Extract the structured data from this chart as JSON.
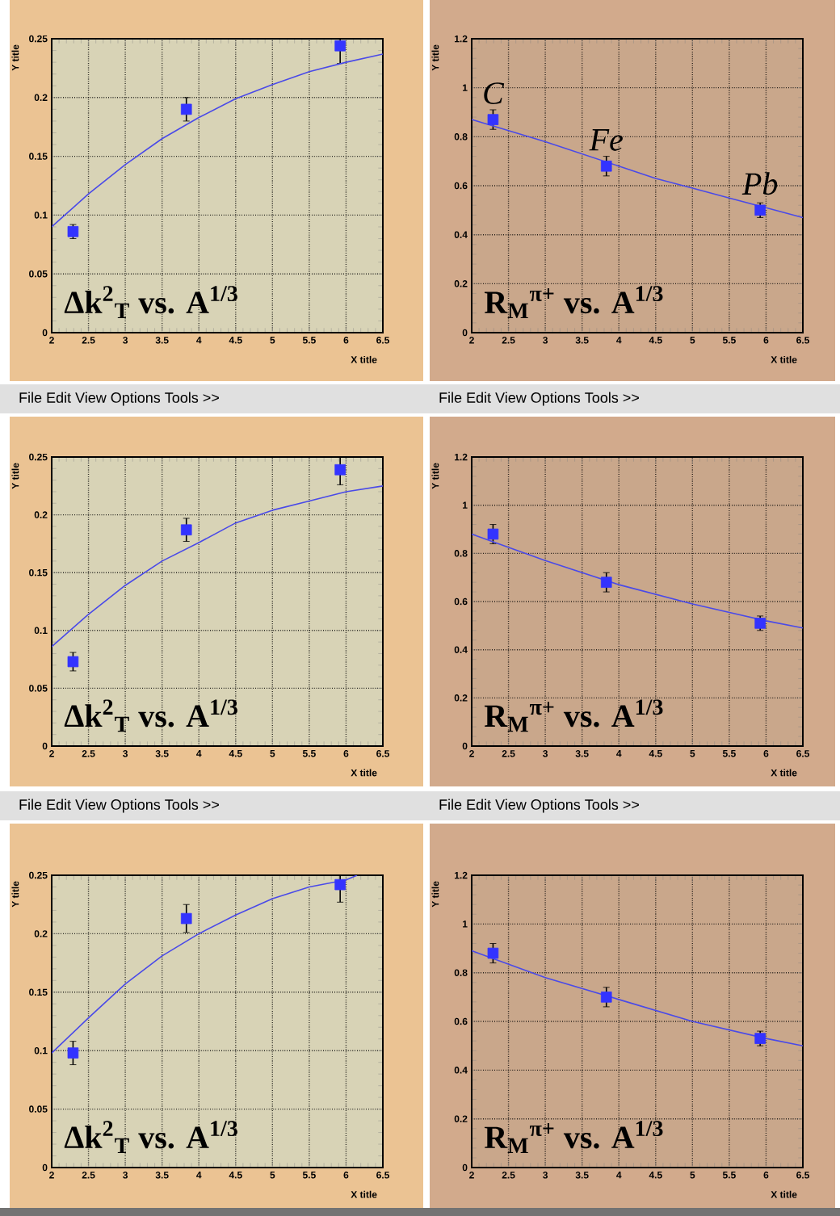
{
  "chart_data": [
    {
      "type": "scatter",
      "xlabel": "X title",
      "ylabel": "Y title",
      "xlim": [
        2,
        6.5
      ],
      "ylim": [
        0,
        0.25
      ],
      "xticks": [
        2,
        2.5,
        3,
        3.5,
        4,
        4.5,
        5,
        5.5,
        6,
        6.5
      ],
      "yticks": [
        0,
        0.05,
        0.1,
        0.15,
        0.2,
        0.25
      ],
      "grid": true,
      "series": [
        {
          "marker": "square",
          "color": "#3333ff",
          "x": [
            2.29,
            3.83,
            5.92
          ],
          "values": [
            0.086,
            0.19,
            0.244
          ],
          "errors": [
            0.006,
            0.01,
            0.015
          ]
        },
        {
          "type": "line",
          "color": "#4a4ae8",
          "x": [
            2,
            2.5,
            3,
            3.5,
            4,
            4.5,
            5,
            5.5,
            6,
            6.5
          ],
          "values": [
            0.09,
            0.118,
            0.143,
            0.165,
            0.183,
            0.199,
            0.211,
            0.222,
            0.23,
            0.237
          ]
        }
      ],
      "annotations": [
        "Δk$^{2}$$_{T}$ vs. A$^{1/3}$"
      ]
    },
    {
      "type": "scatter",
      "xlabel": "X title",
      "ylabel": "Y title",
      "xlim": [
        2,
        6.5
      ],
      "ylim": [
        0,
        1.2
      ],
      "xticks": [
        2,
        2.5,
        3,
        3.5,
        4,
        4.5,
        5,
        5.5,
        6,
        6.5
      ],
      "yticks": [
        0,
        0.2,
        0.4,
        0.6,
        0.8,
        1,
        1.2
      ],
      "grid": true,
      "series": [
        {
          "marker": "square",
          "color": "#3333ff",
          "x": [
            2.29,
            3.83,
            5.92
          ],
          "values": [
            0.87,
            0.68,
            0.5
          ],
          "errors": [
            0.04,
            0.04,
            0.03
          ]
        },
        {
          "type": "line",
          "color": "#4a4ae8",
          "x": [
            2,
            3,
            4,
            4.5,
            5,
            5.5,
            6,
            6.5
          ],
          "values": [
            0.87,
            0.78,
            0.68,
            0.63,
            0.59,
            0.55,
            0.51,
            0.47
          ]
        }
      ],
      "annotations": [
        "R$_{M}$$^{π+}$ vs. A$^{1/3}$",
        {
          "text": "C",
          "x": 2.29,
          "y": 0.87
        },
        {
          "text": "Fe",
          "x": 3.83,
          "y": 0.68
        },
        {
          "text": "Pb",
          "x": 5.92,
          "y": 0.5
        }
      ]
    },
    {
      "type": "scatter",
      "subtitle": "File   Edit   View   Options   Tools      >>",
      "xlabel": "X title",
      "ylabel": "Y title",
      "xlim": [
        2,
        6.5
      ],
      "ylim": [
        0,
        0.25
      ],
      "xticks": [
        2,
        2.5,
        3,
        3.5,
        4,
        4.5,
        5,
        5.5,
        6,
        6.5
      ],
      "yticks": [
        0,
        0.05,
        0.1,
        0.15,
        0.2,
        0.25
      ],
      "grid": true,
      "series": [
        {
          "marker": "square",
          "color": "#3333ff",
          "x": [
            2.29,
            3.83,
            5.92
          ],
          "values": [
            0.073,
            0.187,
            0.239
          ],
          "errors": [
            0.008,
            0.01,
            0.013
          ]
        },
        {
          "type": "line",
          "color": "#4a4ae8",
          "x": [
            2,
            2.5,
            3,
            3.5,
            4,
            4.5,
            5,
            5.5,
            6,
            6.5
          ],
          "values": [
            0.086,
            0.114,
            0.139,
            0.16,
            0.176,
            0.193,
            0.204,
            0.212,
            0.22,
            0.225
          ]
        }
      ],
      "annotations": [
        "Δk$^{2}$$_{T}$ vs. A$^{1/3}$"
      ]
    },
    {
      "type": "scatter",
      "subtitle": "File   Edit   View   Options   Tools      >>",
      "xlabel": "X title",
      "ylabel": "Y title",
      "xlim": [
        2,
        6.5
      ],
      "ylim": [
        0,
        1.2
      ],
      "xticks": [
        2,
        2.5,
        3,
        3.5,
        4,
        4.5,
        5,
        5.5,
        6,
        6.5
      ],
      "yticks": [
        0,
        0.2,
        0.4,
        0.6,
        0.8,
        1,
        1.2
      ],
      "grid": true,
      "series": [
        {
          "marker": "square",
          "color": "#3333ff",
          "x": [
            2.29,
            3.83,
            5.92
          ],
          "values": [
            0.88,
            0.68,
            0.51
          ],
          "errors": [
            0.04,
            0.04,
            0.03
          ]
        },
        {
          "type": "line",
          "color": "#4a4ae8",
          "x": [
            2,
            3,
            4,
            5,
            6,
            6.5
          ],
          "values": [
            0.88,
            0.77,
            0.67,
            0.59,
            0.52,
            0.49
          ]
        }
      ],
      "annotations": [
        "R$_{M}$$^{π+}$ vs. A$^{1/3}$"
      ]
    },
    {
      "type": "scatter",
      "subtitle": "File   Edit   View   Options   Tools      >>",
      "xlabel": "X title",
      "ylabel": "Y title",
      "xlim": [
        2,
        6.5
      ],
      "ylim": [
        0,
        0.25
      ],
      "xticks": [
        2,
        2.5,
        3,
        3.5,
        4,
        4.5,
        5,
        5.5,
        6,
        6.5
      ],
      "yticks": [
        0,
        0.05,
        0.1,
        0.15,
        0.2,
        0.25
      ],
      "grid": true,
      "series": [
        {
          "marker": "square",
          "color": "#3333ff",
          "x": [
            2.29,
            3.83,
            5.92
          ],
          "values": [
            0.098,
            0.213,
            0.242
          ],
          "errors": [
            0.01,
            0.012,
            0.015
          ]
        },
        {
          "type": "line",
          "color": "#4a4ae8",
          "x": [
            2,
            2.5,
            3,
            3.5,
            4,
            4.5,
            5,
            5.5,
            6,
            6.15
          ],
          "values": [
            0.098,
            0.128,
            0.157,
            0.181,
            0.2,
            0.216,
            0.23,
            0.24,
            0.246,
            0.25
          ]
        }
      ],
      "annotations": [
        "Δk$^{2}$$_{T}$ vs. A$^{1/3}$"
      ]
    },
    {
      "type": "scatter",
      "subtitle": "File   Edit   View   Options   Tools      >>",
      "xlabel": "X title",
      "ylabel": "Y title",
      "xlim": [
        2,
        6.5
      ],
      "ylim": [
        0,
        1.2
      ],
      "xticks": [
        2,
        2.5,
        3,
        3.5,
        4,
        4.5,
        5,
        5.5,
        6,
        6.5
      ],
      "yticks": [
        0,
        0.2,
        0.4,
        0.6,
        0.8,
        1,
        1.2
      ],
      "grid": true,
      "series": [
        {
          "marker": "square",
          "color": "#3333ff",
          "x": [
            2.29,
            3.83,
            5.92
          ],
          "values": [
            0.88,
            0.7,
            0.53
          ],
          "errors": [
            0.04,
            0.04,
            0.03
          ]
        },
        {
          "type": "line",
          "color": "#4a4ae8",
          "x": [
            2,
            3,
            4,
            5,
            6,
            6.5
          ],
          "values": [
            0.89,
            0.78,
            0.69,
            0.6,
            0.53,
            0.5
          ]
        }
      ],
      "annotations": [
        "R$_{M}$$^{π+}$ vs. A$^{1/3}$"
      ]
    }
  ]
}
